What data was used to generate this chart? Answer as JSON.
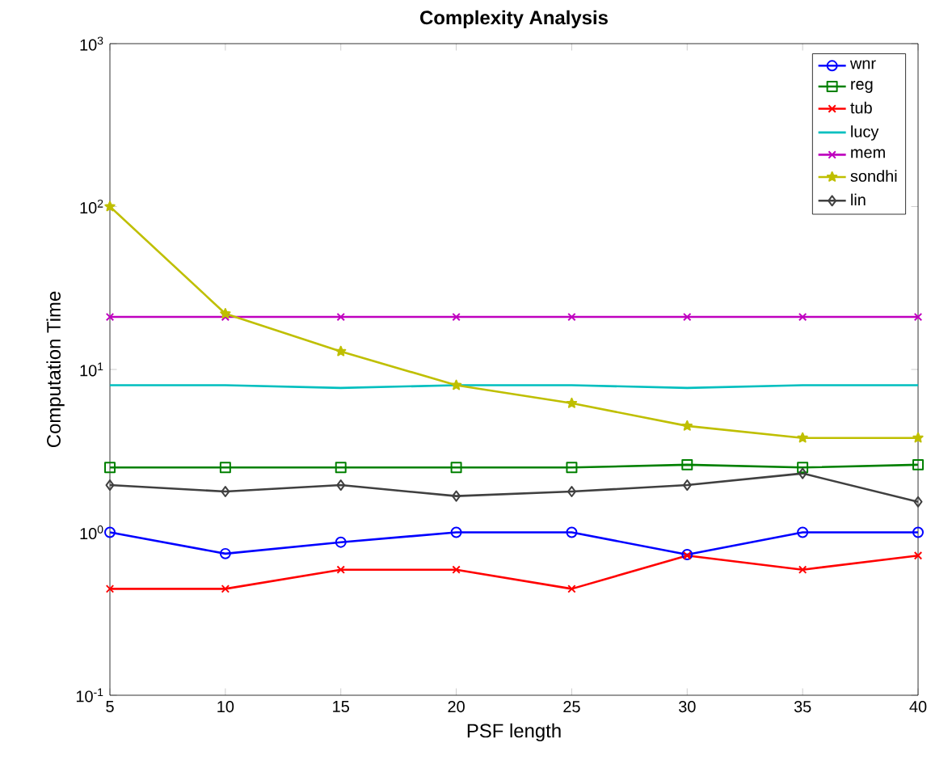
{
  "chart_data": {
    "type": "line",
    "title": "Complexity Analysis",
    "xlabel": "PSF length",
    "ylabel": "Computation Time",
    "x": [
      5,
      10,
      15,
      20,
      25,
      30,
      35,
      40
    ],
    "series": [
      {
        "name": "wnr",
        "color": "#0000ff",
        "marker": "circle",
        "values": [
          1.0,
          0.74,
          0.87,
          1.0,
          1.0,
          0.73,
          1.0,
          1.0
        ]
      },
      {
        "name": "reg",
        "color": "#008000",
        "marker": "square",
        "values": [
          2.5,
          2.5,
          2.5,
          2.5,
          2.5,
          2.6,
          2.5,
          2.6
        ]
      },
      {
        "name": "tub",
        "color": "#ff0000",
        "marker": "cross",
        "values": [
          0.45,
          0.45,
          0.59,
          0.59,
          0.45,
          0.72,
          0.59,
          0.72
        ]
      },
      {
        "name": "lucy",
        "color": "#00bfbf",
        "marker": "none",
        "values": [
          8.0,
          8.0,
          7.7,
          8.0,
          8.0,
          7.7,
          8.0,
          8.0
        ]
      },
      {
        "name": "mem",
        "color": "#bf00bf",
        "marker": "cross",
        "values": [
          21,
          21,
          21,
          21,
          21,
          21,
          21,
          21
        ]
      },
      {
        "name": "sondhi",
        "color": "#bfbf00",
        "marker": "star",
        "values": [
          100,
          22,
          12.9,
          8.0,
          6.2,
          4.5,
          3.8,
          3.8
        ]
      },
      {
        "name": "lin",
        "color": "#404040",
        "marker": "diamond",
        "values": [
          1.95,
          1.78,
          1.95,
          1.67,
          1.78,
          1.95,
          2.3,
          1.54
        ]
      }
    ],
    "log": "y",
    "legend": "top right",
    "line_style": "solid",
    "xlim": [
      5,
      40
    ],
    "ylim": [
      0.1,
      1000
    ],
    "xticks": [
      5,
      10,
      15,
      20,
      25,
      30,
      35,
      40
    ],
    "yticks": [
      {
        "value": 0.1,
        "label": "10$^{-1}$"
      },
      {
        "value": 1,
        "label": "10$^{0}$"
      },
      {
        "value": 10,
        "label": "10$^{1}$"
      },
      {
        "value": 100,
        "label": "10$^{2}$"
      },
      {
        "value": 1000,
        "label": "10$^{3}$"
      }
    ]
  }
}
